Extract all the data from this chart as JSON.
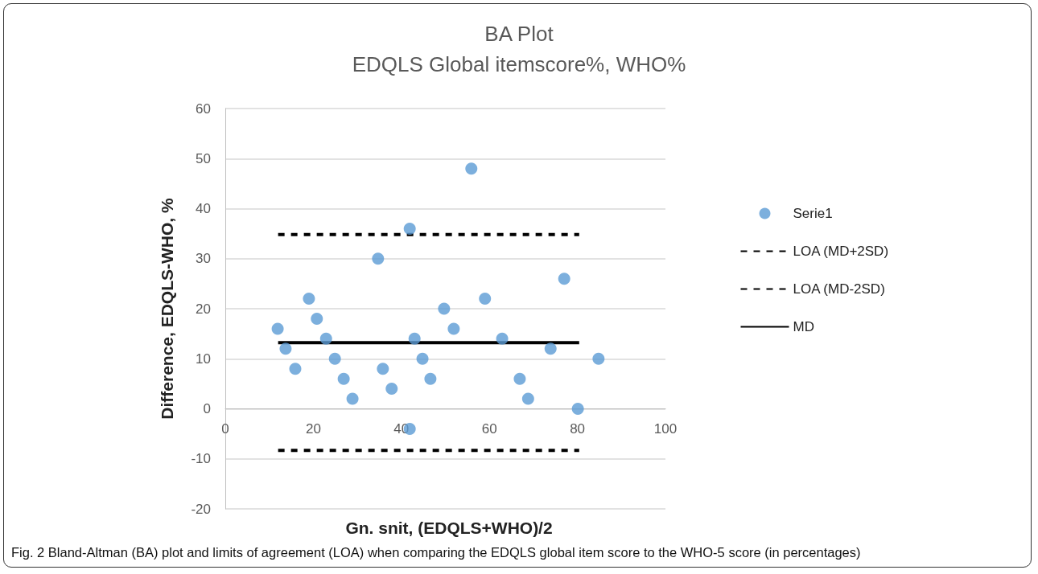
{
  "chart_data": {
    "type": "scatter",
    "title": "BA Plot",
    "subtitle": "EDQLS Global itemscore%, WHO%",
    "xlabel": "Gn. snit, (EDQLS+WHO)/2",
    "ylabel": "Difference, EDQLS-WHO, %",
    "series": [
      {
        "name": "Serie1",
        "color": "#5b9bd5",
        "marker": "circle",
        "x": [
          11.9,
          13.7,
          15.9,
          19,
          20.8,
          22.9,
          24.9,
          26.9,
          28.9,
          34.7,
          35.8,
          37.8,
          41.9,
          41.9,
          43,
          44.8,
          46.6,
          49.7,
          51.9,
          55.9,
          59,
          62.9,
          66.9,
          68.8,
          73.9,
          77,
          80.1,
          84.8
        ],
        "values": [
          16,
          12,
          8,
          22,
          18,
          14,
          10,
          6,
          2,
          30,
          8,
          4,
          36,
          -4,
          14,
          10,
          6,
          20,
          16,
          48,
          22,
          14,
          6,
          2,
          12,
          26,
          0,
          10
        ]
      },
      {
        "name": "LOA (MD+2SD)",
        "type": "line",
        "color": "#000000",
        "line_style": "dashed",
        "marker": "none",
        "x": [
          12,
          80.4
        ],
        "values": [
          34.8,
          34.8
        ]
      },
      {
        "name": "LOA (MD-2SD)",
        "type": "line",
        "color": "#000000",
        "line_style": "dashed",
        "marker": "none",
        "x": [
          12,
          80.4
        ],
        "values": [
          -8.3,
          -8.3
        ]
      },
      {
        "name": "MD",
        "type": "line",
        "color": "#000000",
        "line_style": "solid",
        "marker": "none",
        "x": [
          12,
          80.4
        ],
        "values": [
          13.2,
          13.2
        ]
      }
    ],
    "xlim": [
      0,
      100
    ],
    "xticks": [
      0,
      20,
      40,
      60,
      80,
      100
    ],
    "ylim": [
      -20,
      60
    ],
    "yticks": [
      -20,
      -10,
      0,
      10,
      20,
      30,
      40,
      50,
      60
    ],
    "grid": "y",
    "legend": "right",
    "annotations": [
      "Fig. 2 Bland-Altman (BA) plot and limits of agreement (LOA) when comparing the EDQLS global item score to the WHO-5 score (in percentages)"
    ]
  }
}
